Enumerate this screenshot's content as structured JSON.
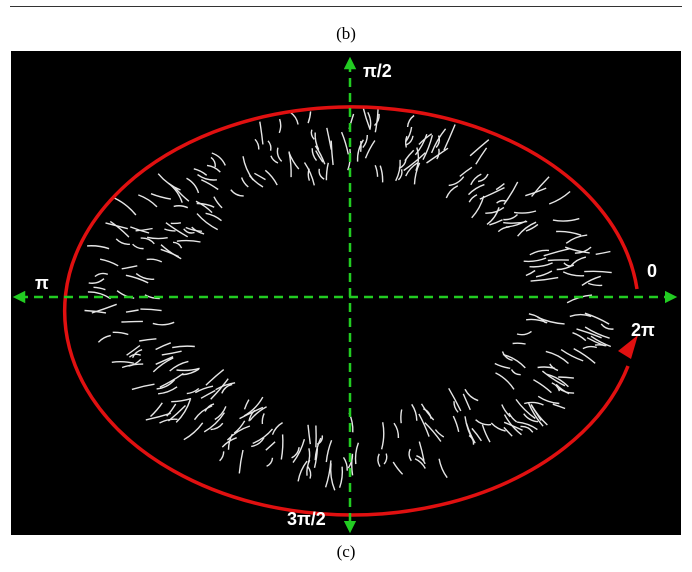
{
  "captions": {
    "top": "(b)",
    "bottom": "(c)"
  },
  "diagram": {
    "angle_labels": {
      "top": "π/2",
      "left": "π",
      "right_start": "0",
      "right_end": "2π",
      "bottom": "3π/2"
    },
    "colors": {
      "background": "#000000",
      "ellipse": "#e01010",
      "axes": "#22cc22",
      "strokes": "#e6e6e6",
      "labels": "#ffffff"
    },
    "ellipse_direction": "counter-clockwise",
    "axis_style": "dashed double-headed arrows"
  }
}
